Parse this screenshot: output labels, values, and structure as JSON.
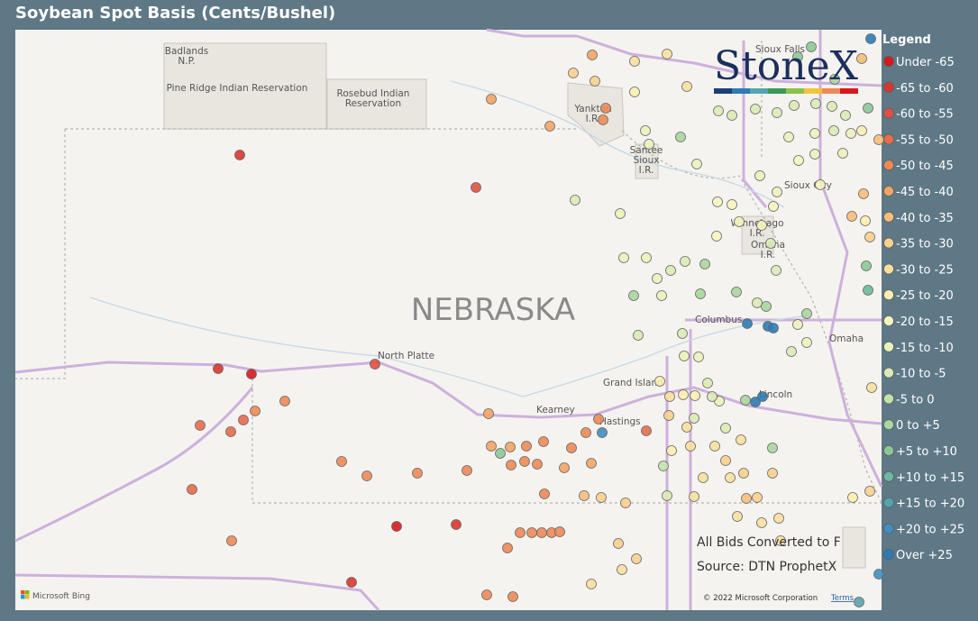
{
  "header": {
    "title": "Soybean Spot Basis (Cents/Bushel)"
  },
  "legend": {
    "title": "Legend",
    "items": [
      {
        "label": "Under -65",
        "color": "#d7191c"
      },
      {
        "label": "-65 to -60",
        "color": "#dc3530"
      },
      {
        "label": "-60 to -55",
        "color": "#e15040"
      },
      {
        "label": "-55 to -50",
        "color": "#e86c4b"
      },
      {
        "label": "-50 to -45",
        "color": "#ee8957"
      },
      {
        "label": "-45 to -40",
        "color": "#f3a565"
      },
      {
        "label": "-40 to -35",
        "color": "#f7be7a"
      },
      {
        "label": "-35 to -30",
        "color": "#f9d08e"
      },
      {
        "label": "-30 to -25",
        "color": "#fae09e"
      },
      {
        "label": "-25 to -20",
        "color": "#fbeeb0"
      },
      {
        "label": "-20 to -15",
        "color": "#f6f5be"
      },
      {
        "label": "-15 to -10",
        "color": "#ebf2bd"
      },
      {
        "label": "-10 to -5",
        "color": "#dbeab6"
      },
      {
        "label": "-5 to 0",
        "color": "#c6e2ac"
      },
      {
        "label": "0 to +5",
        "color": "#aad69f"
      },
      {
        "label": "+5 to +10",
        "color": "#8cc896"
      },
      {
        "label": "+10 to +15",
        "color": "#6db8a0"
      },
      {
        "label": "+15 to +20",
        "color": "#56a4b0"
      },
      {
        "label": "+20 to +25",
        "color": "#408fbf"
      },
      {
        "label": "Over +25",
        "color": "#2c7bb6"
      }
    ]
  },
  "map": {
    "state": "NEBRASKA",
    "places": [
      {
        "lines": [
          "Badlands",
          "N.P."
        ]
      },
      {
        "lines": [
          "Pine Ridge Indian Reservation"
        ]
      },
      {
        "lines": [
          "Rosebud Indian",
          "Reservation"
        ]
      },
      {
        "lines": [
          "North Platte"
        ]
      },
      {
        "lines": [
          "Kearney"
        ]
      },
      {
        "lines": [
          "Grand Island"
        ]
      },
      {
        "lines": [
          "Hastings"
        ]
      },
      {
        "lines": [
          "Columbus"
        ]
      },
      {
        "lines": [
          "Lincoln"
        ]
      },
      {
        "lines": [
          "Omaha"
        ]
      },
      {
        "lines": [
          "Sioux Falls"
        ]
      },
      {
        "lines": [
          "Sioux City"
        ]
      },
      {
        "lines": [
          "Yankton",
          "I.R."
        ]
      },
      {
        "lines": [
          "Santee",
          "Sioux",
          "I.R."
        ]
      },
      {
        "lines": [
          "Winnebago",
          "I.R."
        ]
      },
      {
        "lines": [
          "Omaha",
          "I.R."
        ]
      }
    ]
  },
  "logo": "StoneX",
  "notes": [
    "All Bids Converted to F",
    "Source: DTN ProphetX"
  ],
  "attribution": "Microsoft Bing",
  "copyright": "© 2022 Microsoft Corporation",
  "terms": "Terms"
}
